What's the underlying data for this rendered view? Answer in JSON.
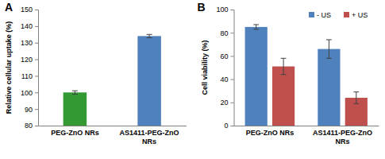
{
  "chart_data": [
    {
      "type": "bar",
      "title": "A",
      "ylabel": "Relative cellular uptake (%)",
      "categories": [
        "PEG-ZnO NRs",
        "AS1411-PEG-ZnO NRs"
      ],
      "values": [
        100,
        134
      ],
      "errors": [
        1,
        1
      ],
      "colors": [
        "#339933",
        "#4f81bd"
      ],
      "ylim": [
        80,
        150
      ],
      "yticks": [
        80,
        90,
        100,
        110,
        120,
        130,
        140,
        150
      ],
      "grid": false
    },
    {
      "type": "bar",
      "title": "B",
      "ylabel": "Cell viability (%)",
      "categories": [
        "PEG-ZnO NRs",
        "AS1411-PEG-ZnO NRs"
      ],
      "series": [
        {
          "name": "- US",
          "color": "#4f81bd",
          "values": [
            85,
            66
          ],
          "errors": [
            2,
            8
          ]
        },
        {
          "name": "+ US",
          "color": "#c0504d",
          "values": [
            51,
            24
          ],
          "errors": [
            7,
            5
          ]
        }
      ],
      "ylim": [
        0,
        100
      ],
      "yticks": [
        0,
        20,
        40,
        60,
        80,
        100
      ],
      "grid": false,
      "legend": "top-right"
    }
  ]
}
